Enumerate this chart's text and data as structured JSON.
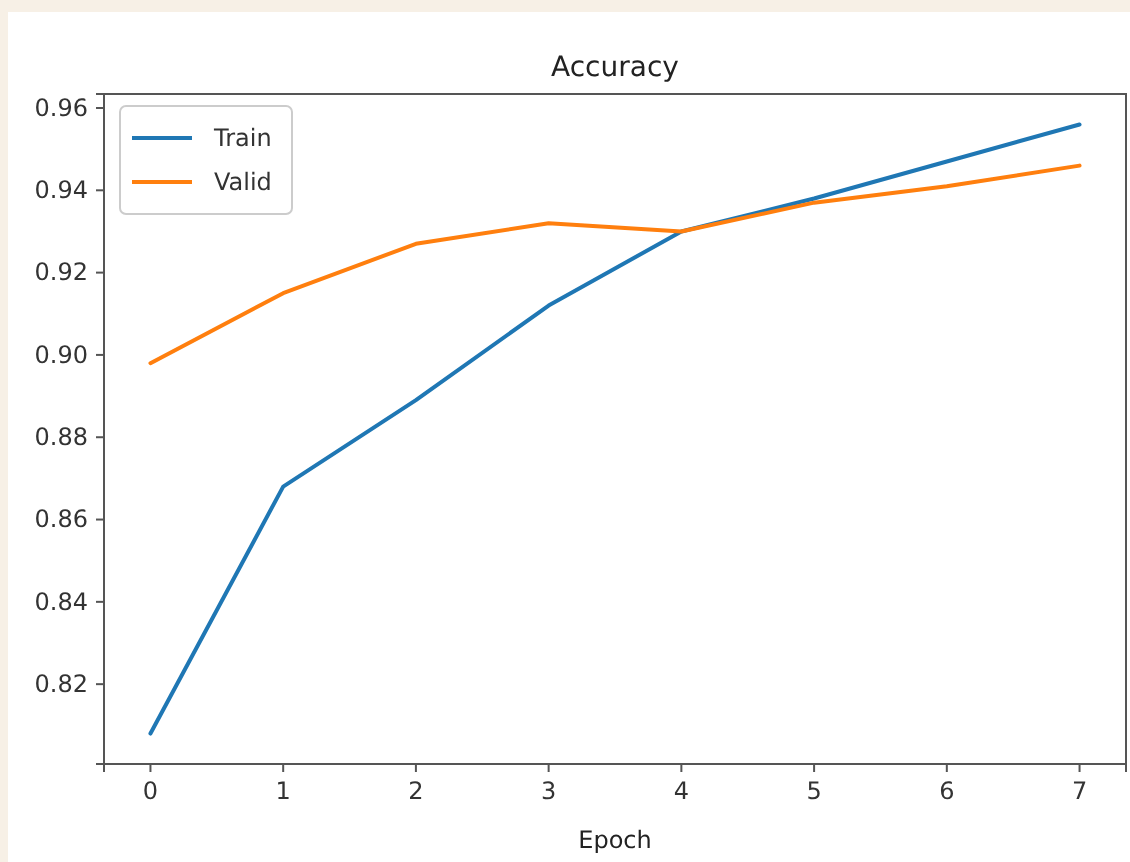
{
  "chart_data": {
    "type": "line",
    "title": "Accuracy",
    "xlabel": "Epoch",
    "x": [
      0,
      1,
      2,
      3,
      4,
      5,
      6,
      7
    ],
    "series": [
      {
        "name": "Train",
        "color": "#1f77b4",
        "values": [
          0.808,
          0.868,
          0.889,
          0.912,
          0.93,
          0.938,
          0.947,
          0.956
        ]
      },
      {
        "name": "Valid",
        "color": "#ff7f0e",
        "values": [
          0.898,
          0.915,
          0.927,
          0.932,
          0.93,
          0.937,
          0.941,
          0.946
        ]
      }
    ],
    "xlim": [
      -0.35,
      7.35
    ],
    "ylim": [
      0.8006,
      0.9634
    ],
    "xticks": [
      0,
      1,
      2,
      3,
      4,
      5,
      6,
      7
    ],
    "yticks": [
      {
        "value": 0.82,
        "label": "0.82"
      },
      {
        "value": 0.84,
        "label": "0.84"
      },
      {
        "value": 0.86,
        "label": "0.86"
      },
      {
        "value": 0.88,
        "label": "0.88"
      },
      {
        "value": 0.9,
        "label": "0.90"
      },
      {
        "value": 0.92,
        "label": "0.92"
      },
      {
        "value": 0.94,
        "label": "0.94"
      },
      {
        "value": 0.96,
        "label": "0.96"
      }
    ],
    "grid": false,
    "legend": "top left",
    "marker": "none",
    "line_style": "solid"
  }
}
